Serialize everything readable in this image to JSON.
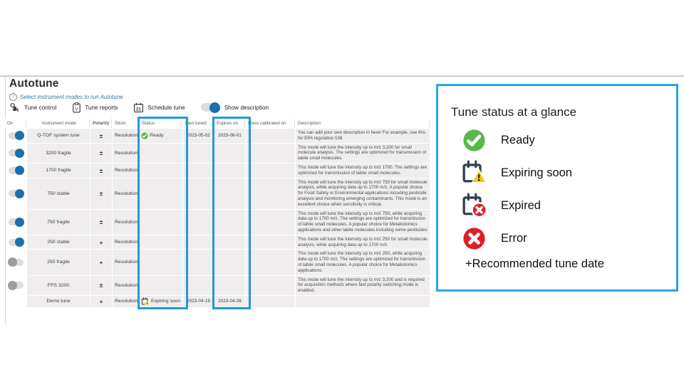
{
  "header": {
    "title": "Autotune",
    "subtitle": "Select instrument modes to run Autotune"
  },
  "toolbar": {
    "tune_control": "Tune control",
    "tune_reports": "Tune reports",
    "schedule_tune": "Schedule tune",
    "show_description": "Show description",
    "show_description_on": true
  },
  "colors": {
    "accent_blue": "#1e9cd9",
    "panel_border_blue": "#27a7df",
    "toggle_on_blue": "#1b6fae",
    "ready_green": "#5bb74d",
    "error_red": "#dd1f26",
    "warning_yellow": "#f7c51e",
    "calendar_dark": "#33404d"
  },
  "table": {
    "columns": [
      "On",
      "Instrument mode",
      "Polarity",
      "Slicer",
      "Status",
      "Last tuned",
      "Expires on",
      "Mass calibrated on",
      "Description"
    ],
    "rows": [
      {
        "toggle": "on",
        "mode": "Q-TOF system tune",
        "polarity": "±",
        "slicer": "Resolution",
        "status_icon": "ready",
        "status_label": "Ready",
        "last_tuned": "2023-05-02",
        "expires_on": "2023-06-01",
        "mass_calibrated_on": "",
        "description": "You can add your own description in here! For example, use this for EPA regulation 538"
      },
      {
        "toggle": "on",
        "mode": "3200 fragile",
        "polarity": "±",
        "slicer": "Resolution",
        "status_icon": null,
        "status_label": "",
        "last_tuned": "",
        "expires_on": "",
        "mass_calibrated_on": "",
        "description": "This mode will tune the intensity up to m/z 3,200 for small molecule analysis. The settings are optimized for transmission of labile small molecules."
      },
      {
        "toggle": "on",
        "mode": "1700 fragile",
        "polarity": "±",
        "slicer": "Resolution",
        "status_icon": null,
        "status_label": "",
        "last_tuned": "",
        "expires_on": "",
        "mass_calibrated_on": "",
        "description": "This mode will tune the intensity up to m/z 1700. The settings are optimized for transmission of labile small molecules."
      },
      {
        "toggle": "on",
        "mode": "750 stable",
        "polarity": "±",
        "slicer": "Resolution",
        "status_icon": null,
        "status_label": "",
        "last_tuned": "",
        "expires_on": "",
        "mass_calibrated_on": "",
        "description": "This mode will tune the intensity up to m/z 750 for small molecule analysis, while acquiring data up to 1700 m/z. A popular choice for Food Safety or Environmental applications including pesticide analysis and monitoring emerging contaminants. This mode is an excellent choice when sensitivity is critical."
      },
      {
        "toggle": "on",
        "mode": "750 fragile",
        "polarity": "±",
        "slicer": "Resolution",
        "status_icon": null,
        "status_label": "",
        "last_tuned": "",
        "expires_on": "",
        "mass_calibrated_on": "",
        "description": "This mode will tune the intensity up to m/z 750, while acquiring data up to 1700 m/z. The settings are optimized for transmission of labile small molecules.  A popular choice for Metabolomics applications and other labile molecules including some pesticides"
      },
      {
        "toggle": "on",
        "mode": "250 stable",
        "polarity": "+",
        "slicer": "Resolution",
        "status_icon": null,
        "status_label": "",
        "last_tuned": "",
        "expires_on": "",
        "mass_calibrated_on": "",
        "description": "This mode will tune the intensity up to m/z 250 for small molecule analysis, while acquiring data up to 1700 m/z."
      },
      {
        "toggle": "off",
        "mode": "250 fragile",
        "polarity": "+",
        "slicer": "Resolution",
        "status_icon": null,
        "status_label": "",
        "last_tuned": "",
        "expires_on": "",
        "mass_calibrated_on": "",
        "description": "This mode will tune the intensity up to m/z 250, while acquiring data up to 1700 m/z. The settings are optimized for transmission of labile small molecules.  A popular choice for Metabolomics applications."
      },
      {
        "toggle": "off",
        "mode": "FPS 3200",
        "polarity": "±",
        "slicer": "Resolution",
        "status_icon": null,
        "status_label": "",
        "last_tuned": "",
        "expires_on": "",
        "mass_calibrated_on": "",
        "description": "This mode will tune the intensity up to m/z 3,200 and is required for acquisition methods where fast polarity switching mode is enabled."
      },
      {
        "toggle": "none",
        "mode": "Demo tune",
        "polarity": "+",
        "slicer": "Resolution",
        "status_icon": "expiring",
        "status_label": "Expiring soon",
        "last_tuned": "2023-04-19",
        "expires_on": "2023-04-26",
        "mass_calibrated_on": "",
        "description": ""
      }
    ]
  },
  "legend": {
    "title": "Tune status at a glance",
    "items": [
      {
        "icon": "ready",
        "label": "Ready"
      },
      {
        "icon": "expiring",
        "label": "Expiring soon"
      },
      {
        "icon": "expired",
        "label": "Expired"
      },
      {
        "icon": "error",
        "label": "Error"
      }
    ],
    "footnote": "+Recommended tune date"
  }
}
